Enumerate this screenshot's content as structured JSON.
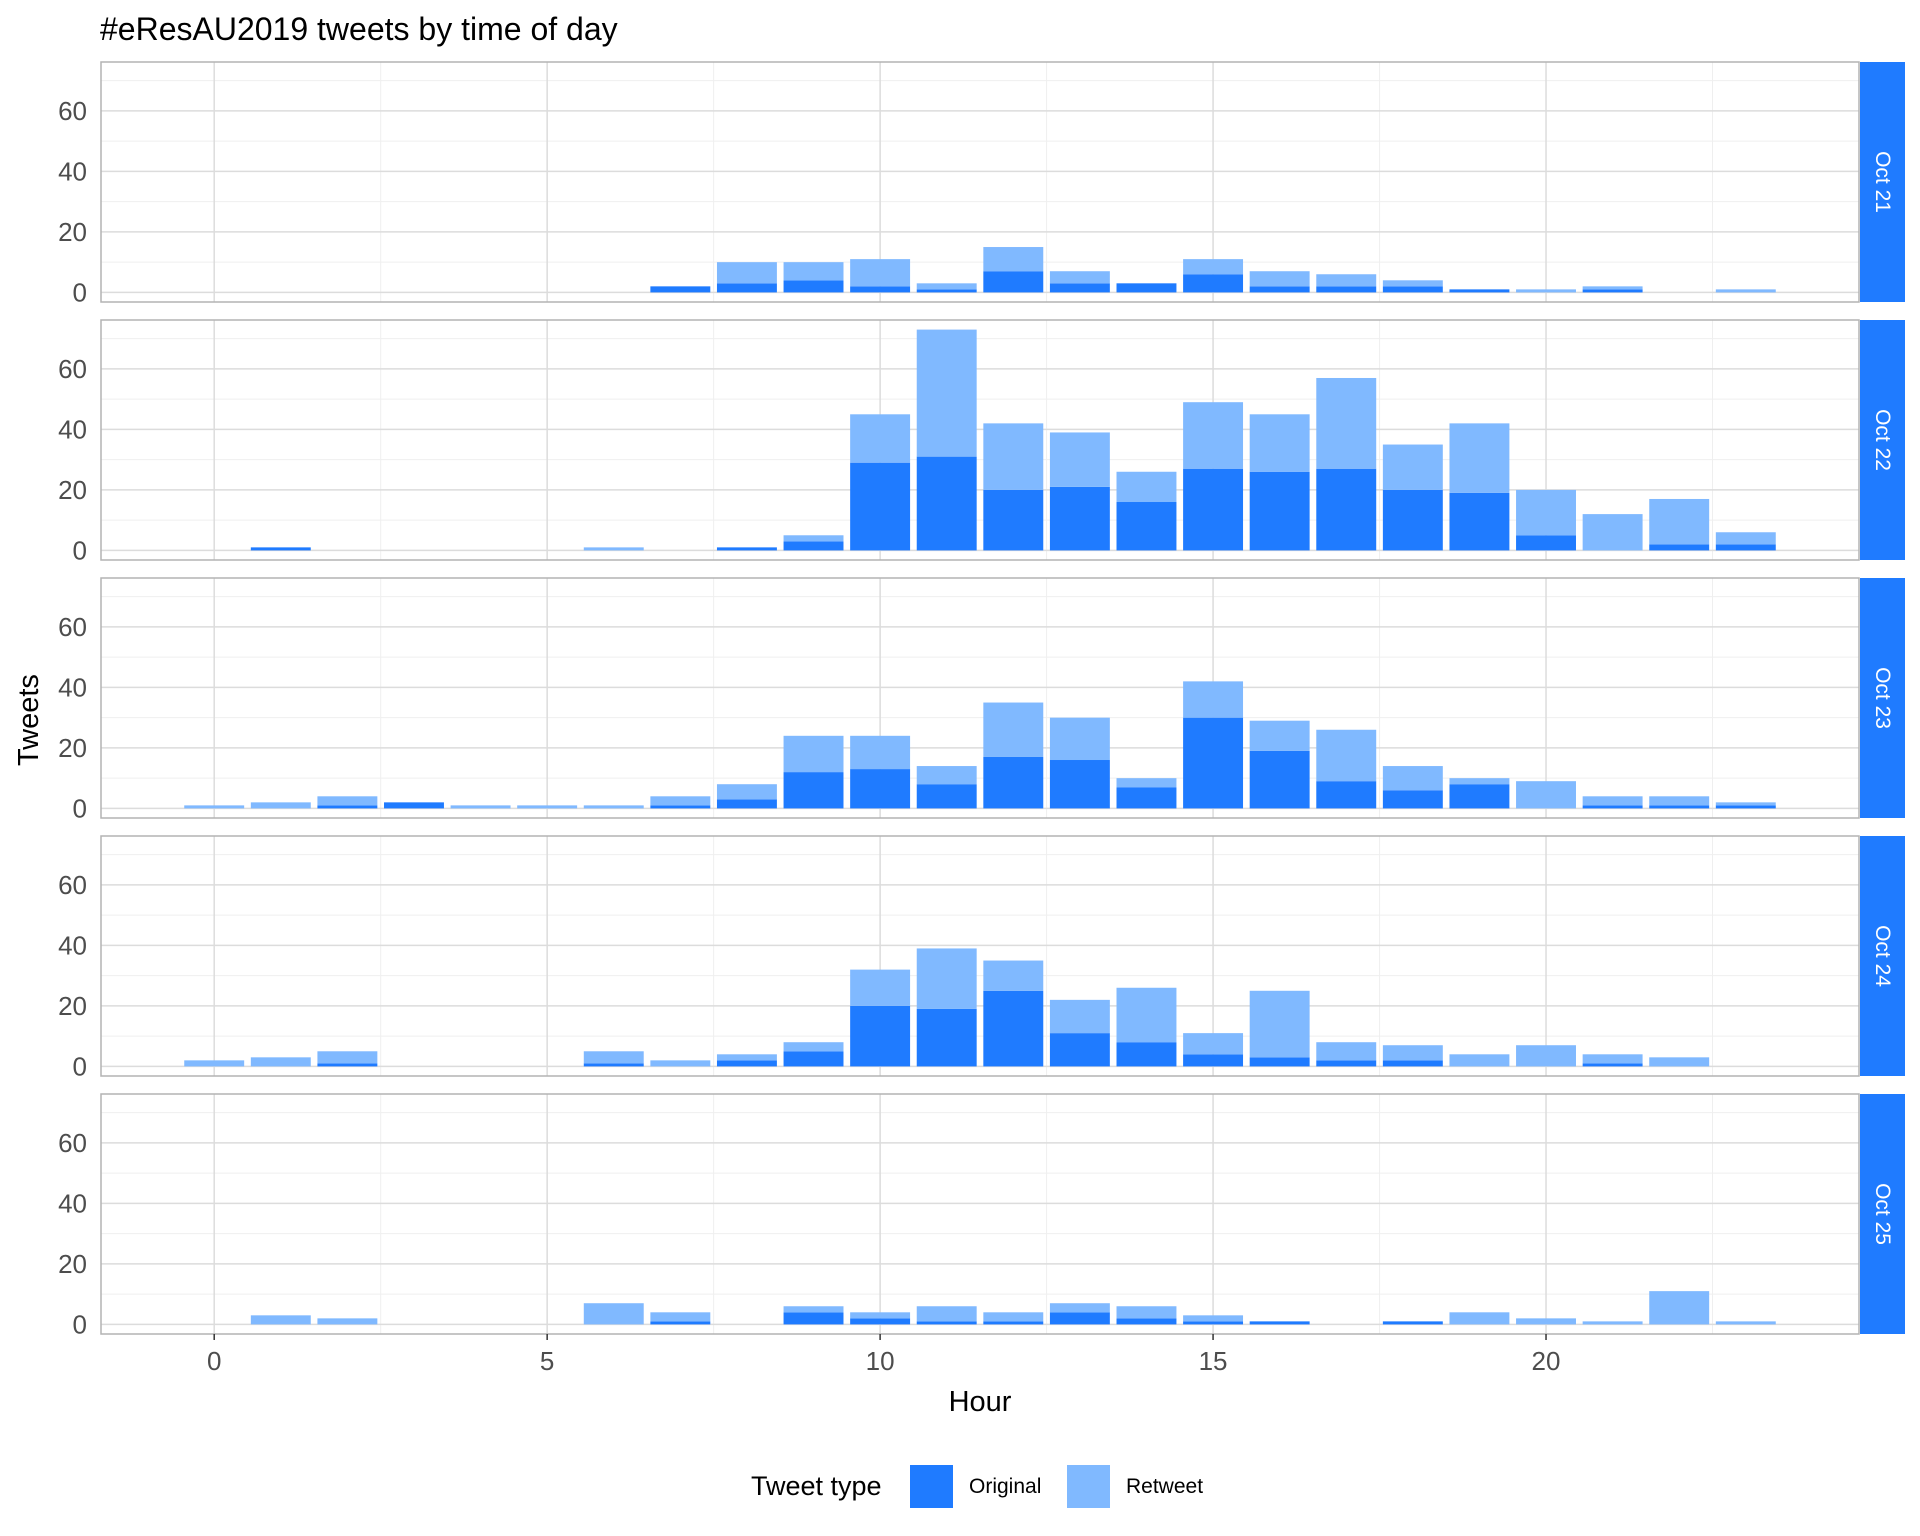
{
  "colors": {
    "original": "#1f7bff",
    "retweet": "#80b9ff",
    "strip": "#1f7bff",
    "grid_major": "#dcdcdc",
    "grid_minor": "#efefef",
    "panel_border": "#b3b3b3"
  },
  "chart_data": {
    "type": "bar",
    "stacked": true,
    "title": "#eResAU2019 tweets by time of day",
    "xlabel": "Hour",
    "ylabel": "Tweets",
    "xlim": [
      -1.7,
      24.7
    ],
    "ylim": [
      0,
      73
    ],
    "x_ticks": [
      0,
      5,
      10,
      15,
      20
    ],
    "y_ticks": [
      0,
      20,
      40,
      60
    ],
    "grid": true,
    "legend": {
      "title": "Tweet type",
      "position": "bottom",
      "entries": [
        "Original",
        "Retweet"
      ]
    },
    "x": [
      0,
      1,
      2,
      3,
      4,
      5,
      6,
      7,
      8,
      9,
      10,
      11,
      12,
      13,
      14,
      15,
      16,
      17,
      18,
      19,
      20,
      21,
      22,
      23
    ],
    "facets": [
      {
        "label": "Oct 21",
        "series": [
          {
            "name": "Original",
            "values": [
              0,
              0,
              0,
              0,
              0,
              0,
              0,
              2,
              3,
              4,
              2,
              1,
              7,
              3,
              3,
              6,
              2,
              2,
              2,
              1,
              0,
              1,
              0,
              0
            ]
          },
          {
            "name": "Retweet",
            "values": [
              0,
              0,
              0,
              0,
              0,
              0,
              0,
              0,
              7,
              6,
              9,
              2,
              8,
              4,
              0,
              5,
              5,
              4,
              2,
              0,
              1,
              1,
              0,
              1
            ]
          }
        ]
      },
      {
        "label": "Oct 22",
        "series": [
          {
            "name": "Original",
            "values": [
              0,
              1,
              0,
              0,
              0,
              0,
              0,
              0,
              1,
              3,
              29,
              31,
              20,
              21,
              16,
              27,
              26,
              27,
              20,
              19,
              5,
              0,
              2,
              2
            ]
          },
          {
            "name": "Retweet",
            "values": [
              0,
              0,
              0,
              0,
              0,
              0,
              1,
              0,
              0,
              2,
              16,
              42,
              22,
              18,
              10,
              22,
              19,
              30,
              15,
              23,
              15,
              12,
              15,
              4
            ]
          }
        ]
      },
      {
        "label": "Oct 23",
        "series": [
          {
            "name": "Original",
            "values": [
              0,
              0,
              1,
              2,
              0,
              0,
              0,
              1,
              3,
              12,
              13,
              8,
              17,
              16,
              7,
              30,
              19,
              9,
              6,
              8,
              0,
              1,
              1,
              1
            ]
          },
          {
            "name": "Retweet",
            "values": [
              1,
              2,
              3,
              0,
              1,
              1,
              1,
              3,
              5,
              12,
              11,
              6,
              18,
              14,
              3,
              12,
              10,
              17,
              8,
              2,
              9,
              3,
              3,
              1
            ]
          }
        ]
      },
      {
        "label": "Oct 24",
        "series": [
          {
            "name": "Original",
            "values": [
              0,
              0,
              1,
              0,
              0,
              0,
              1,
              0,
              2,
              5,
              20,
              19,
              25,
              11,
              8,
              4,
              3,
              2,
              2,
              0,
              0,
              1,
              0,
              0
            ]
          },
          {
            "name": "Retweet",
            "values": [
              2,
              3,
              4,
              0,
              0,
              0,
              4,
              2,
              2,
              3,
              12,
              20,
              10,
              11,
              18,
              7,
              22,
              6,
              5,
              4,
              7,
              3,
              3,
              0
            ]
          }
        ]
      },
      {
        "label": "Oct 25",
        "series": [
          {
            "name": "Original",
            "values": [
              0,
              0,
              0,
              0,
              0,
              0,
              0,
              1,
              0,
              4,
              2,
              1,
              1,
              4,
              2,
              1,
              1,
              0,
              1,
              0,
              0,
              0,
              0,
              0
            ]
          },
          {
            "name": "Retweet",
            "values": [
              0,
              3,
              2,
              0,
              0,
              0,
              7,
              3,
              0,
              2,
              2,
              5,
              3,
              3,
              4,
              2,
              0,
              0,
              0,
              4,
              2,
              1,
              11,
              1
            ]
          }
        ]
      }
    ]
  }
}
